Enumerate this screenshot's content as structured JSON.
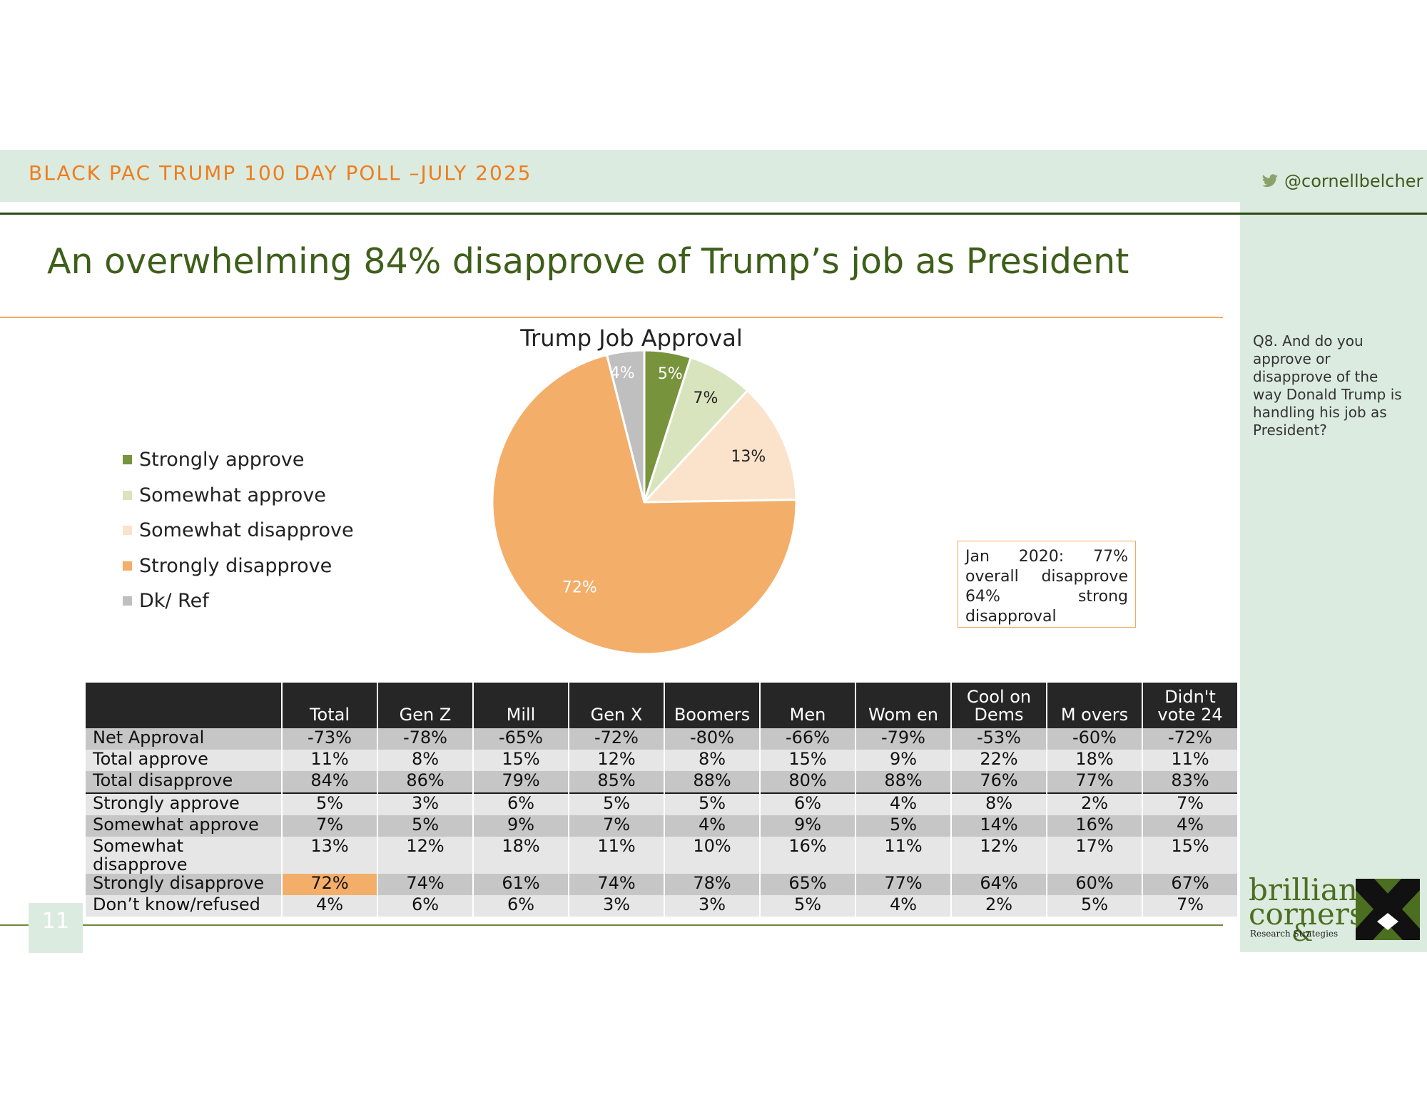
{
  "header": {
    "title": "BLACK PAC TRUMP 100 DAY POLL –JULY 2025",
    "handle": "@cornellbelcher"
  },
  "slide": {
    "title": "An overwhelming 84% disapprove of Trump’s job as President",
    "question": "Q8. And do you approve or disapprove of the way Donald Trump is handling his job as President?",
    "note": "Jan 2020: 77% overall disapprove 64% strong disapproval",
    "page_number": "11"
  },
  "logo": {
    "line1": "brilliant",
    "line2": "corners",
    "amp": "&",
    "sub": "Research    Strategies"
  },
  "colors": {
    "strongly_approve": "#77933c",
    "somewhat_approve": "#d7e4bd",
    "somewhat_disapprove": "#fbe2cb",
    "strongly_disapprove": "#f3ae69",
    "dk_ref": "#bfbfbf",
    "title_green": "#3e5f1a",
    "header_orange": "#ed7d1e",
    "band": "#dcebe0"
  },
  "chart_data": {
    "type": "pie",
    "title": "Trump Job Approval",
    "categories": [
      "Strongly approve",
      "Somewhat approve",
      "Somewhat disapprove",
      "Strongly disapprove",
      "Dk/ Ref"
    ],
    "values": [
      5,
      7,
      13,
      72,
      4
    ],
    "data_labels": [
      "5%",
      "7%",
      "13%",
      "72%",
      "4%"
    ],
    "colors": [
      "#77933c",
      "#d7e4bd",
      "#fbe2cb",
      "#f3ae69",
      "#bfbfbf"
    ],
    "label_colors": [
      "#ffffff",
      "#222222",
      "#222222",
      "#ffffff",
      "#ffffff"
    ],
    "legend_position": "left"
  },
  "table": {
    "headers": [
      "",
      "Total",
      "Gen Z",
      "Mill",
      "Gen X",
      "Boomers",
      "Men",
      "Wom en",
      "Cool on Dems",
      "M overs",
      "Didn't vote 24"
    ],
    "rows": [
      {
        "label": "Net Approval",
        "values": [
          "-73%",
          "-78%",
          "-65%",
          "-72%",
          "-80%",
          "-66%",
          "-79%",
          "-53%",
          "-60%",
          "-72%"
        ]
      },
      {
        "label": "Total approve",
        "values": [
          "11%",
          "8%",
          "15%",
          "12%",
          "8%",
          "15%",
          "9%",
          "22%",
          "18%",
          "11%"
        ]
      },
      {
        "label": "Total disapprove",
        "values": [
          "84%",
          "86%",
          "79%",
          "85%",
          "88%",
          "80%",
          "88%",
          "76%",
          "77%",
          "83%"
        ]
      },
      {
        "label": "Strongly approve",
        "values": [
          "5%",
          "3%",
          "6%",
          "5%",
          "5%",
          "6%",
          "4%",
          "8%",
          "2%",
          "7%"
        ]
      },
      {
        "label": "Somewhat approve",
        "values": [
          "7%",
          "5%",
          "9%",
          "7%",
          "4%",
          "9%",
          "5%",
          "14%",
          "16%",
          "4%"
        ]
      },
      {
        "label": "Somewhat disapprove",
        "values": [
          "13%",
          "12%",
          "18%",
          "11%",
          "10%",
          "16%",
          "11%",
          "12%",
          "17%",
          "15%"
        ]
      },
      {
        "label": "Strongly disapprove",
        "values": [
          "72%",
          "74%",
          "61%",
          "74%",
          "78%",
          "65%",
          "77%",
          "64%",
          "60%",
          "67%"
        ]
      },
      {
        "label": "Don’t know/refused",
        "values": [
          "4%",
          "6%",
          "6%",
          "3%",
          "3%",
          "5%",
          "4%",
          "2%",
          "5%",
          "7%"
        ]
      }
    ]
  }
}
